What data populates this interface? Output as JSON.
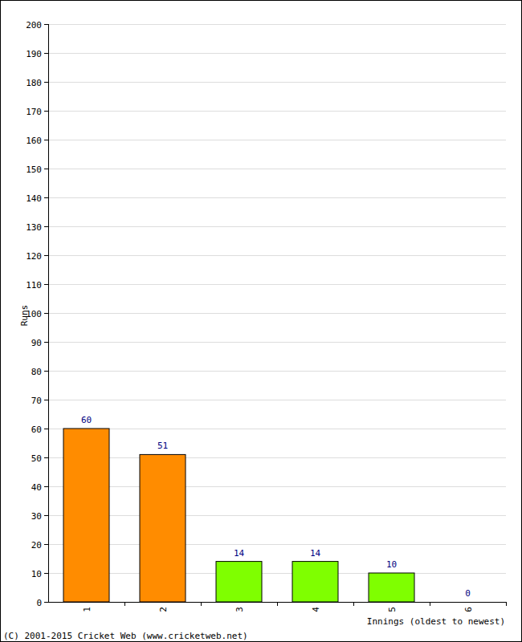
{
  "chart_data": {
    "type": "bar",
    "x_label": "Innings (oldest to newest)",
    "y_label": "Runs",
    "annotations": [
      "(C) 2001-2015 Cricket Web (www.cricketweb.net)"
    ],
    "categories": [
      "1",
      "2",
      "3",
      "4",
      "5",
      "6"
    ],
    "values": [
      60,
      51,
      14,
      14,
      10,
      0
    ],
    "colors": [
      "#ff8c00",
      "#ff8c00",
      "#7fff00",
      "#7fff00",
      "#7fff00",
      "#7fff00"
    ],
    "ylim": [
      0,
      200
    ],
    "yticks": [
      0,
      10,
      20,
      30,
      40,
      50,
      60,
      70,
      80,
      90,
      100,
      110,
      120,
      130,
      140,
      150,
      160,
      170,
      180,
      190,
      200
    ],
    "grid": true,
    "data_labels": true
  }
}
